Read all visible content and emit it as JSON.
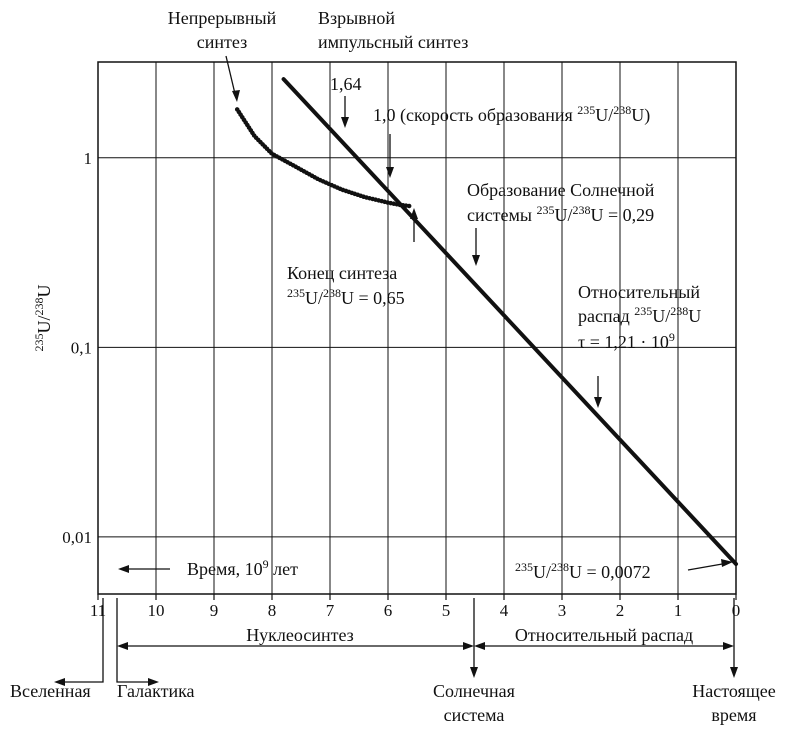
{
  "chart_data": {
    "type": "line",
    "title": "",
    "ylabel": "²³⁵U/²³⁸U",
    "yscale": "log",
    "ylim": [
      0.005,
      3.2
    ],
    "xlim": [
      11,
      0
    ],
    "x_ticks": [
      "11",
      "10",
      "9",
      "8",
      "7",
      "6",
      "5",
      "4",
      "3",
      "2",
      "1",
      "0"
    ],
    "y_ticks": [
      "0,01",
      "0,1",
      "1"
    ],
    "grid": true,
    "series": [
      {
        "name": "",
        "style": "thick-line",
        "x": [
          7.8,
          0
        ],
        "y": [
          2.6,
          0.0072
        ]
      },
      {
        "name": "",
        "style": "dotted-thick",
        "x": [
          8.6,
          8.3,
          8.0,
          7.6,
          7.2,
          6.8,
          6.4,
          6.0,
          5.8,
          5.6
        ],
        "y": [
          1.8,
          1.3,
          1.05,
          0.9,
          0.77,
          0.68,
          0.62,
          0.58,
          0.565,
          0.555
        ]
      }
    ],
    "annotations": {
      "continuous": [
        "Непрерывный",
        "синтез"
      ],
      "explosive": [
        "Взрывной",
        "импульсный синтез"
      ],
      "v164": "1,64",
      "v10": "1,0 (скорость образования ",
      "ratio_sup_a": "235",
      "ratio_u_a": "U/",
      "ratio_sup_b": "238",
      "ratio_u_b": "U",
      "ratio_close": ")",
      "solar_formation": [
        "Образование Солнечной",
        "системы "
      ],
      "solar_value": " = 0,29",
      "synthesis_end": "Конец синтеза",
      "synthesis_value": " = 0,65",
      "relative_decay": [
        "Относительный",
        "распад "
      ],
      "tau": "τ = 1,21 · 10",
      "tau_exp": "9",
      "present_value": " = 0,0072",
      "time_label": "Время, 10",
      "time_exp": "9",
      "time_unit": " лет"
    },
    "bottom_labels": {
      "nucleosynthesis": "Нуклеосинтез",
      "relative_decay": "Относительный распад",
      "universe": "Вселенная",
      "galaxy": "Галактика",
      "solar": [
        "Солнечная",
        "система"
      ],
      "present": [
        "Настоящее",
        "время"
      ]
    }
  }
}
